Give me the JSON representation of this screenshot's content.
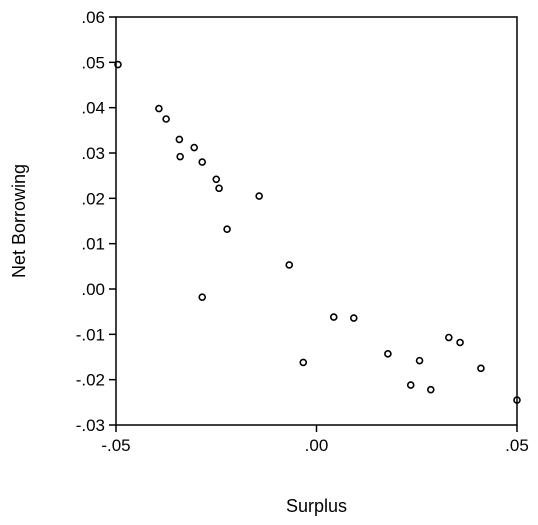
{
  "chart_data": {
    "type": "scatter",
    "xlabel": "Surplus",
    "ylabel": "Net Borrowing",
    "xlim": [
      -0.05,
      0.05
    ],
    "ylim": [
      -0.03,
      0.06
    ],
    "xticks": [
      -0.05,
      0.0,
      0.05
    ],
    "xtick_labels": [
      "-.05",
      ".00",
      ".05"
    ],
    "yticks": [
      -0.03,
      -0.02,
      -0.01,
      0.0,
      0.01,
      0.02,
      0.03,
      0.04,
      0.05,
      0.06
    ],
    "ytick_labels": [
      "-.03",
      "-.02",
      "-.01",
      ".00",
      ".01",
      ".02",
      ".03",
      ".04",
      ".05",
      ".06"
    ],
    "grid": false,
    "marker": "hollow-circle",
    "points": [
      {
        "x": -0.0495,
        "y": 0.0495
      },
      {
        "x": -0.0393,
        "y": 0.0398
      },
      {
        "x": -0.0375,
        "y": 0.0375
      },
      {
        "x": -0.0342,
        "y": 0.033
      },
      {
        "x": -0.034,
        "y": 0.0292
      },
      {
        "x": -0.0305,
        "y": 0.0312
      },
      {
        "x": -0.0285,
        "y": 0.028
      },
      {
        "x": -0.025,
        "y": 0.0242
      },
      {
        "x": -0.0243,
        "y": 0.0222
      },
      {
        "x": -0.0223,
        "y": 0.0132
      },
      {
        "x": -0.0143,
        "y": 0.0205
      },
      {
        "x": -0.0285,
        "y": -0.0018
      },
      {
        "x": -0.0068,
        "y": 0.0053
      },
      {
        "x": -0.0033,
        "y": -0.0162
      },
      {
        "x": 0.0043,
        "y": -0.0062
      },
      {
        "x": 0.0093,
        "y": -0.0064
      },
      {
        "x": 0.0178,
        "y": -0.0143
      },
      {
        "x": 0.0235,
        "y": -0.0212
      },
      {
        "x": 0.0257,
        "y": -0.0158
      },
      {
        "x": 0.0285,
        "y": -0.0222
      },
      {
        "x": 0.033,
        "y": -0.0107
      },
      {
        "x": 0.0358,
        "y": -0.0118
      },
      {
        "x": 0.041,
        "y": -0.0175
      },
      {
        "x": 0.05,
        "y": -0.0245
      }
    ]
  }
}
